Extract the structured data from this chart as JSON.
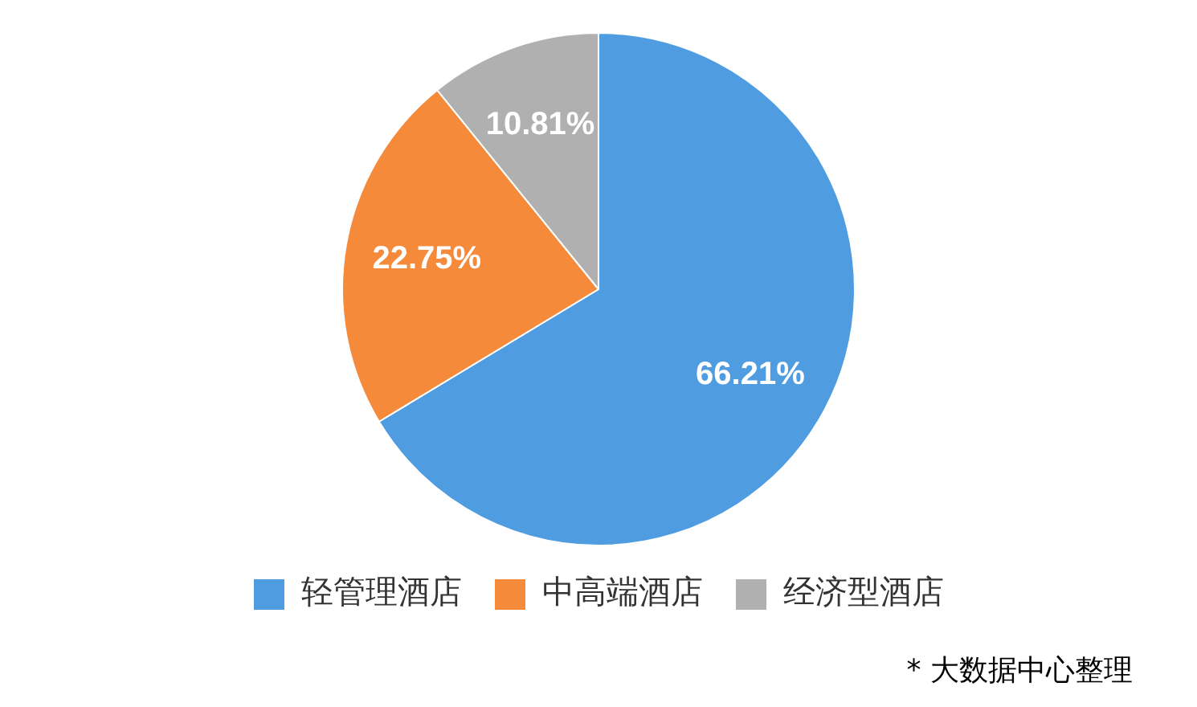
{
  "chart_data": {
    "type": "pie",
    "categories": [
      "轻管理酒店",
      "中高端酒店",
      "经济型酒店"
    ],
    "values": [
      66.21,
      22.75,
      10.81
    ],
    "colors": [
      "#4f9de0",
      "#f58a3a",
      "#b0b0b0"
    ],
    "value_labels": [
      "66.21%",
      "22.75%",
      "10.81%"
    ],
    "legend": "bottom",
    "annotations": [
      "* 大数据中心整理"
    ]
  }
}
